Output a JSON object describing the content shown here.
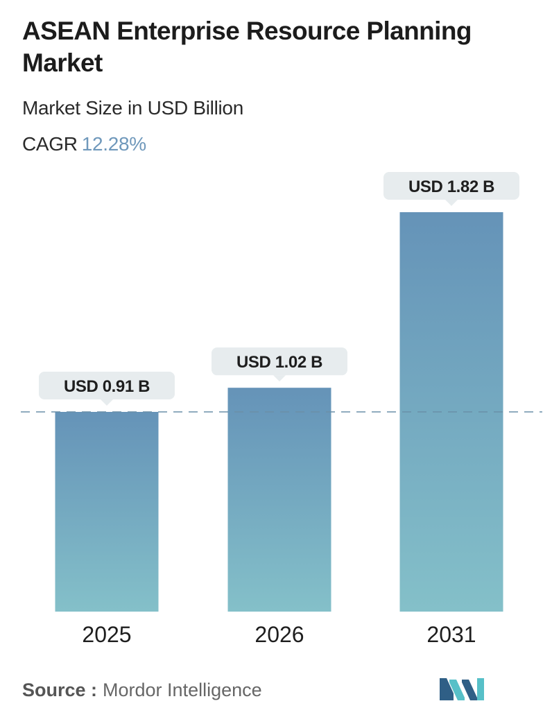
{
  "header": {
    "title": "ASEAN Enterprise Resource Planning Market",
    "subtitle": "Market Size in USD Billion",
    "cagr_label": "CAGR",
    "cagr_value": "12.28%"
  },
  "chart_data": {
    "type": "bar",
    "categories": [
      "2025",
      "2026",
      "2031"
    ],
    "values": [
      0.91,
      1.02,
      1.82
    ],
    "value_labels": [
      "USD 0.91 B",
      "USD 1.02 B",
      "USD 1.82 B"
    ],
    "title": "ASEAN Enterprise Resource Planning Market",
    "subtitle": "Market Size in USD Billion",
    "ylim": [
      0,
      1.82
    ],
    "grid": false,
    "reference_line": 0.91,
    "colors": {
      "bar_top": "#6593b8",
      "bar_bottom": "#84c0c9",
      "label_bg": "#e7ecee",
      "reference_line": "#6a8fa8"
    }
  },
  "footer": {
    "source_label": "Source :",
    "source_name": "Mordor Intelligence",
    "logo_icon": "mordor-intelligence-logo",
    "logo_colors": [
      "#2f5f86",
      "#57c0c8"
    ]
  }
}
